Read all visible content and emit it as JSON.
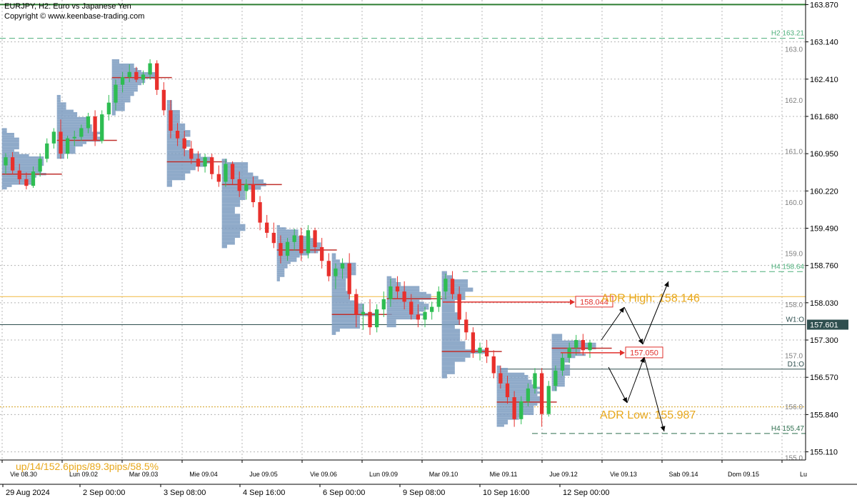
{
  "header": {
    "symbol_line": "EURJPY, H2:  Euro vs Japanese Yen",
    "copyright": "Copyright © www.keenbase-trading.com"
  },
  "status_text": "up/14/152.6pips/89.3pips/58.5%",
  "colors": {
    "background": "#ffffff",
    "bull": "#2ebd52",
    "bear": "#e8302c",
    "volume_profile": "#7b9bbf",
    "poc": "#c0302c",
    "grid": "#b4b4b4",
    "adr": "#e8a81c",
    "level_green": "#2e8b57",
    "level_dark": "#2f4f4f",
    "price_box": "#e0302c"
  },
  "chart_data": {
    "type": "candlestick",
    "y_axis": {
      "ylim": [
        154.95,
        163.96
      ],
      "tick_labels": [
        "163.870",
        "163.140",
        "162.410",
        "161.680",
        "160.950",
        "160.220",
        "159.490",
        "158.760",
        "158.030",
        "157.300",
        "156.570",
        "155.840",
        "155.110"
      ],
      "tick_values": [
        163.87,
        163.14,
        162.41,
        161.68,
        160.95,
        160.22,
        159.49,
        158.76,
        158.03,
        157.3,
        156.57,
        155.84,
        155.11
      ],
      "round_levels": [
        {
          "label": "163.0",
          "value": 163.0
        },
        {
          "label": "162.0",
          "value": 162.0
        },
        {
          "label": "161.0",
          "value": 161.0
        },
        {
          "label": "160.0",
          "value": 160.0
        },
        {
          "label": "159.0",
          "value": 159.0
        },
        {
          "label": "158.0",
          "value": 158.0
        },
        {
          "label": "157.0",
          "value": 157.0
        },
        {
          "label": "156.0",
          "value": 156.0
        },
        {
          "label": "155.0",
          "value": 155.0
        }
      ]
    },
    "x_axis": {
      "upper_labels": [
        "Vie 08.30",
        "Lun 09.02",
        "Mar 09.03",
        "Mie 09.04",
        "Jue 09.05",
        "Vie 09.06",
        "Lun 09.09",
        "Mar 09.10",
        "Mie 09.11",
        "Jue 09.12",
        "Vie 09.13",
        "Sab 09.14",
        "Dom 09.15",
        "Lu"
      ],
      "lower_labels": [
        "29 Aug 2024",
        "2 Sep 00:00",
        "3 Sep 08:00",
        "4 Sep 16:00",
        "6 Sep 00:00",
        "9 Sep 08:00",
        "10 Sep 16:00",
        "12 Sep 00:00"
      ]
    },
    "levels": [
      {
        "label": "H2 163.21",
        "value": 163.21,
        "style": "dashed",
        "color": "#4caf7a"
      },
      {
        "label": "H4 158.64",
        "value": 158.64,
        "style": "dashed",
        "color": "#4caf7a"
      },
      {
        "label": "H4 155.47",
        "value": 155.47,
        "style": "dashed",
        "color": "#2f6f4f"
      },
      {
        "label": "W1:O",
        "value": 157.601,
        "style": "solid",
        "color": "#2f4f4f"
      },
      {
        "label": "D1:O",
        "value": 156.73,
        "style": "solid",
        "color": "#2f4f4f"
      }
    ],
    "top_level": 163.87,
    "horizontal_lines": [
      {
        "value": 158.15,
        "color": "#f0b840"
      },
      {
        "value": 155.99,
        "color": "#d4a020",
        "style": "dotted"
      }
    ],
    "current_price": "157.601",
    "price_boxes": [
      {
        "label": "158.044",
        "value": 158.044
      },
      {
        "label": "157.050",
        "value": 157.05
      }
    ],
    "adr": {
      "high_label": "ADR High: 158.146",
      "high": 158.146,
      "low_label": "ADR Low: 155.987",
      "low": 155.987
    },
    "candles": [
      [
        160.72,
        160.96,
        160.55,
        160.88
      ],
      [
        160.88,
        160.98,
        160.55,
        160.62
      ],
      [
        160.62,
        160.75,
        160.35,
        160.45
      ],
      [
        160.45,
        160.58,
        160.25,
        160.32
      ],
      [
        160.32,
        160.7,
        160.28,
        160.6
      ],
      [
        160.6,
        160.95,
        160.5,
        160.85
      ],
      [
        160.85,
        161.25,
        160.78,
        161.15
      ],
      [
        161.15,
        161.45,
        161.05,
        161.38
      ],
      [
        161.38,
        161.62,
        160.85,
        160.95
      ],
      [
        160.95,
        161.3,
        160.85,
        161.25
      ],
      [
        161.25,
        161.4,
        161.1,
        161.28
      ],
      [
        161.28,
        161.52,
        161.2,
        161.45
      ],
      [
        161.45,
        161.75,
        161.35,
        161.68
      ],
      [
        161.68,
        161.8,
        161.1,
        161.2
      ],
      [
        161.2,
        161.8,
        161.15,
        161.72
      ],
      [
        161.72,
        162.1,
        161.6,
        161.95
      ],
      [
        161.95,
        162.4,
        161.8,
        162.3
      ],
      [
        162.3,
        162.55,
        162.15,
        162.45
      ],
      [
        162.45,
        162.7,
        162.35,
        162.55
      ],
      [
        162.55,
        162.65,
        162.35,
        162.4
      ],
      [
        162.4,
        162.58,
        162.3,
        162.5
      ],
      [
        162.5,
        162.8,
        162.4,
        162.72
      ],
      [
        162.72,
        162.78,
        162.1,
        162.2
      ],
      [
        162.2,
        162.35,
        161.7,
        161.8
      ],
      [
        161.8,
        162.0,
        161.25,
        161.4
      ],
      [
        161.4,
        161.55,
        161.1,
        161.25
      ],
      [
        161.25,
        161.4,
        160.9,
        161.05
      ],
      [
        161.05,
        161.2,
        160.75,
        160.85
      ],
      [
        160.85,
        161.0,
        160.6,
        160.7
      ],
      [
        160.7,
        160.95,
        160.58,
        160.88
      ],
      [
        160.88,
        160.95,
        160.45,
        160.55
      ],
      [
        160.55,
        160.72,
        160.3,
        160.4
      ],
      [
        160.4,
        160.85,
        160.3,
        160.75
      ],
      [
        160.75,
        160.8,
        160.35,
        160.45
      ],
      [
        160.45,
        160.6,
        160.1,
        160.22
      ],
      [
        160.22,
        160.45,
        160.05,
        160.35
      ],
      [
        160.35,
        160.5,
        159.9,
        160.0
      ],
      [
        160.0,
        160.12,
        159.45,
        159.6
      ],
      [
        159.6,
        159.75,
        159.3,
        159.4
      ],
      [
        159.4,
        159.6,
        159.1,
        159.2
      ],
      [
        159.2,
        159.35,
        158.8,
        158.95
      ],
      [
        158.95,
        159.3,
        158.85,
        159.22
      ],
      [
        159.22,
        159.48,
        159.05,
        159.35
      ],
      [
        159.35,
        159.5,
        158.85,
        159.0
      ],
      [
        159.0,
        159.55,
        158.9,
        159.45
      ],
      [
        159.45,
        159.5,
        159.0,
        159.12
      ],
      [
        159.12,
        159.3,
        158.7,
        158.85
      ],
      [
        158.85,
        159.0,
        158.45,
        158.55
      ],
      [
        158.55,
        158.8,
        158.3,
        158.7
      ],
      [
        158.7,
        158.9,
        158.5,
        158.8
      ],
      [
        158.8,
        159.0,
        158.1,
        158.2
      ],
      [
        158.2,
        158.3,
        157.55,
        157.8
      ],
      [
        157.8,
        158.0,
        157.5,
        157.85
      ],
      [
        157.85,
        158.1,
        157.4,
        157.55
      ],
      [
        157.55,
        158.0,
        157.45,
        157.9
      ],
      [
        157.9,
        158.25,
        157.75,
        158.1
      ],
      [
        158.1,
        158.5,
        157.95,
        158.35
      ],
      [
        158.35,
        158.55,
        158.1,
        158.25
      ],
      [
        158.25,
        158.45,
        157.9,
        158.05
      ],
      [
        158.05,
        158.2,
        157.7,
        157.8
      ],
      [
        157.8,
        158.0,
        157.55,
        157.7
      ],
      [
        157.7,
        157.95,
        157.55,
        157.85
      ],
      [
        157.85,
        158.05,
        157.7,
        157.95
      ],
      [
        157.95,
        158.35,
        157.85,
        158.25
      ],
      [
        158.25,
        158.6,
        158.1,
        158.5
      ],
      [
        158.5,
        158.65,
        158.1,
        158.2
      ],
      [
        158.2,
        158.35,
        157.6,
        157.7
      ],
      [
        157.7,
        157.85,
        157.3,
        157.45
      ],
      [
        157.45,
        157.55,
        156.95,
        157.05
      ],
      [
        157.05,
        157.25,
        156.9,
        157.15
      ],
      [
        157.15,
        157.3,
        156.85,
        156.98
      ],
      [
        156.98,
        157.1,
        156.55,
        156.65
      ],
      [
        156.65,
        156.8,
        156.35,
        156.45
      ],
      [
        156.45,
        156.6,
        156.05,
        156.18
      ],
      [
        156.18,
        156.3,
        155.6,
        155.75
      ],
      [
        155.75,
        156.2,
        155.65,
        156.1
      ],
      [
        156.1,
        156.45,
        156.0,
        156.35
      ],
      [
        156.35,
        156.75,
        156.25,
        156.65
      ],
      [
        156.65,
        156.75,
        155.6,
        155.85
      ],
      [
        155.85,
        156.5,
        155.8,
        156.4
      ],
      [
        156.4,
        156.8,
        156.3,
        156.7
      ],
      [
        156.7,
        157.05,
        156.6,
        156.95
      ],
      [
        156.95,
        157.25,
        156.85,
        157.15
      ],
      [
        157.15,
        157.4,
        157.0,
        157.3
      ],
      [
        157.3,
        157.42,
        157.0,
        157.1
      ],
      [
        157.1,
        157.3,
        156.95,
        157.25
      ]
    ]
  }
}
